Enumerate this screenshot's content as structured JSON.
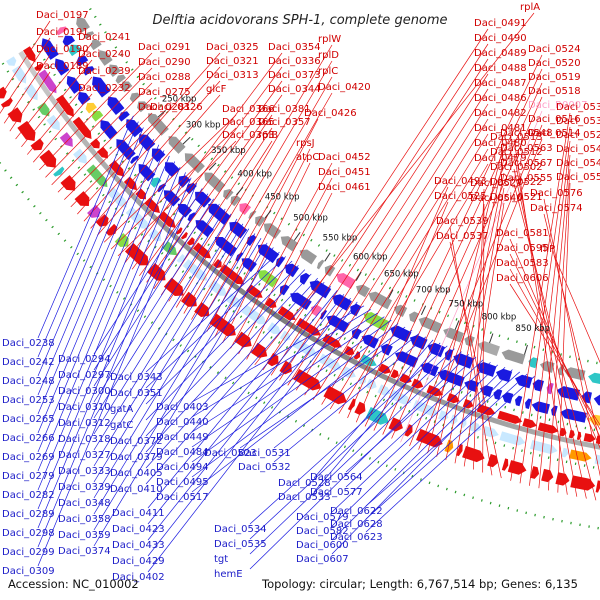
{
  "title": "Delftia acidovorans SPH-1, complete genome",
  "footer": {
    "accession": "Accession: NC_010002",
    "summary": "Topology: circular; Length: 6,767,514 bp; Genes: 6,135"
  },
  "ticks": [
    "250 kbp",
    "300 kbp",
    "350 kbp",
    "400 kbp",
    "450 kbp",
    "500 kbp",
    "550 kbp",
    "600 kbp",
    "650 kbp",
    "700 kbp",
    "750 kbp",
    "800 kbp",
    "850 kbp"
  ],
  "top_labels": [
    {
      "t": "Daci_0197",
      "c": "r"
    },
    {
      "t": "Daci_0191",
      "c": "r"
    },
    {
      "t": "Daci_0190",
      "c": "r"
    },
    {
      "t": "Daci_0189",
      "c": "r"
    },
    {
      "t": "Daci_0241",
      "c": "r"
    },
    {
      "t": "Daci_0240",
      "c": "r"
    },
    {
      "t": "Daci_0239",
      "c": "r"
    },
    {
      "t": "Daci_0232",
      "c": "r"
    },
    {
      "t": "Daci_0291",
      "c": "r"
    },
    {
      "t": "Daci_0290",
      "c": "r"
    },
    {
      "t": "Daci_0288",
      "c": "r"
    },
    {
      "t": "Daci_0275",
      "c": "r"
    },
    {
      "t": "Daci_0281",
      "c": "r"
    },
    {
      "t": "Daci_0326",
      "c": "r"
    },
    {
      "t": "Daci_0325",
      "c": "r"
    },
    {
      "t": "Daci_0321",
      "c": "r"
    },
    {
      "t": "Daci_0313",
      "c": "r"
    },
    {
      "t": "glcF",
      "c": "r"
    },
    {
      "t": "Daci_0366",
      "c": "r"
    },
    {
      "t": "Daci_0365",
      "c": "r"
    },
    {
      "t": "Daci_0363",
      "c": "r"
    },
    {
      "t": "Daci_0354",
      "c": "r"
    },
    {
      "t": "Daci_0336",
      "c": "r"
    },
    {
      "t": "Daci_0373",
      "c": "r"
    },
    {
      "t": "Daci_0344",
      "c": "r"
    },
    {
      "t": "Daci_0381",
      "c": "r"
    },
    {
      "t": "Daci_0357",
      "c": "r"
    },
    {
      "t": "rplB",
      "c": "r"
    },
    {
      "t": "rplW",
      "c": "r"
    },
    {
      "t": "rplD",
      "c": "r"
    },
    {
      "t": "rplC",
      "c": "r"
    },
    {
      "t": "Daci_0420",
      "c": "r"
    },
    {
      "t": "Daci_0426",
      "c": "r"
    },
    {
      "t": "rpsJ",
      "c": "r"
    },
    {
      "t": "atpC",
      "c": "r"
    },
    {
      "t": "Daci_0452",
      "c": "r"
    },
    {
      "t": "Daci_0451",
      "c": "r"
    },
    {
      "t": "Daci_0461",
      "c": "r"
    },
    {
      "t": "rplA",
      "c": "r"
    },
    {
      "t": "Daci_0491",
      "c": "r"
    },
    {
      "t": "Daci_0490",
      "c": "r"
    },
    {
      "t": "Daci_0489",
      "c": "r"
    },
    {
      "t": "Daci_0488",
      "c": "r"
    },
    {
      "t": "Daci_0487",
      "c": "r"
    },
    {
      "t": "Daci_0486",
      "c": "r"
    },
    {
      "t": "Daci_0482",
      "c": "r"
    },
    {
      "t": "Daci_0481",
      "c": "r"
    },
    {
      "t": "Daci_0480",
      "c": "r"
    },
    {
      "t": "Daci_0479",
      "c": "r"
    },
    {
      "t": "Daci_0493",
      "c": "r"
    },
    {
      "t": "Daci_0525",
      "c": "r"
    },
    {
      "t": "Daci_0524",
      "c": "r"
    },
    {
      "t": "Daci_0520",
      "c": "r"
    },
    {
      "t": "Daci_0519",
      "c": "r"
    },
    {
      "t": "Daci_0518",
      "c": "r"
    },
    {
      "t": "Daci_R0007",
      "c": "p"
    },
    {
      "t": "Daci_0516",
      "c": "r"
    },
    {
      "t": "Daci_0514",
      "c": "r"
    },
    {
      "t": "Daci_0513",
      "c": "r"
    },
    {
      "t": "Daci_0512",
      "c": "r"
    },
    {
      "t": "Daci_0502",
      "c": "r"
    },
    {
      "t": "Daci_0522",
      "c": "r"
    },
    {
      "t": "Daci_0521",
      "c": "r"
    },
    {
      "t": "Daci_0527",
      "c": "r"
    },
    {
      "t": "Daci_0540",
      "c": "r"
    },
    {
      "t": "Daci_0539",
      "c": "r"
    },
    {
      "t": "Daci_0537",
      "c": "r"
    },
    {
      "t": "Daci_0536",
      "c": "r"
    },
    {
      "t": "Daci_0530",
      "c": "r"
    },
    {
      "t": "Daci_0529",
      "c": "r"
    },
    {
      "t": "Daci_0544",
      "c": "r"
    },
    {
      "t": "Daci_0542",
      "c": "r"
    },
    {
      "t": "Daci_0550",
      "c": "r"
    },
    {
      "t": "Daci_0548",
      "c": "r"
    },
    {
      "t": "Daci_0563",
      "c": "r"
    },
    {
      "t": "Daci_0567",
      "c": "r"
    },
    {
      "t": "Daci_0555",
      "c": "r"
    },
    {
      "t": "Daci_0576",
      "c": "r"
    },
    {
      "t": "Daci_0574",
      "c": "r"
    },
    {
      "t": "Daci_0581",
      "c": "r"
    },
    {
      "t": "Daci_0595",
      "c": "r"
    },
    {
      "t": "Daci_0583",
      "c": "r"
    },
    {
      "t": "Daci_0606",
      "c": "r"
    },
    {
      "t": "fliP",
      "c": "r"
    }
  ],
  "bottom_labels": [
    {
      "t": "Daci_0238"
    },
    {
      "t": "Daci_0242"
    },
    {
      "t": "Daci_0248"
    },
    {
      "t": "Daci_0253"
    },
    {
      "t": "Daci_0265"
    },
    {
      "t": "Daci_0266"
    },
    {
      "t": "Daci_0269"
    },
    {
      "t": "Daci_0279"
    },
    {
      "t": "Daci_0282"
    },
    {
      "t": "Daci_0289"
    },
    {
      "t": "Daci_0298"
    },
    {
      "t": "Daci_0299"
    },
    {
      "t": "Daci_0309"
    },
    {
      "t": "Daci_0294"
    },
    {
      "t": "Daci_0297"
    },
    {
      "t": "Daci_0300"
    },
    {
      "t": "Daci_0310"
    },
    {
      "t": "Daci_0312"
    },
    {
      "t": "Daci_0318"
    },
    {
      "t": "Daci_0327"
    },
    {
      "t": "Daci_0333"
    },
    {
      "t": "Daci_0339"
    },
    {
      "t": "Daci_0348"
    },
    {
      "t": "Daci_0358"
    },
    {
      "t": "Daci_0359"
    },
    {
      "t": "Daci_0374"
    },
    {
      "t": "Daci_0343"
    },
    {
      "t": "Daci_0351"
    },
    {
      "t": "gatA"
    },
    {
      "t": "gatC"
    },
    {
      "t": "Daci_0372"
    },
    {
      "t": "Daci_0379"
    },
    {
      "t": "Daci_0405"
    },
    {
      "t": "Daci_0410"
    },
    {
      "t": "Daci_0411"
    },
    {
      "t": "Daci_0423"
    },
    {
      "t": "Daci_0433"
    },
    {
      "t": "Daci_0429"
    },
    {
      "t": "Daci_0402"
    },
    {
      "t": "Daci_0403"
    },
    {
      "t": "Daci_0440"
    },
    {
      "t": "Daci_0449"
    },
    {
      "t": "Daci_0484"
    },
    {
      "t": "Daci_0494"
    },
    {
      "t": "Daci_0495"
    },
    {
      "t": "Daci_0517"
    },
    {
      "t": "Daci_0523"
    },
    {
      "t": "Daci_0531"
    },
    {
      "t": "Daci_0532"
    },
    {
      "t": "Daci_0528"
    },
    {
      "t": "Daci_0533"
    },
    {
      "t": "Daci_0534"
    },
    {
      "t": "Daci_0535"
    },
    {
      "t": "tgt"
    },
    {
      "t": "hemE"
    },
    {
      "t": "Daci_0564"
    },
    {
      "t": "Daci_0577"
    },
    {
      "t": "Daci_0579"
    },
    {
      "t": "Daci_0582"
    },
    {
      "t": "Daci_0600"
    },
    {
      "t": "Daci_0607"
    },
    {
      "t": "Daci_0622"
    },
    {
      "t": "Daci_0628"
    },
    {
      "t": "Daci_0623"
    }
  ],
  "colors": {
    "forward": "#e81010",
    "reverse": "#1a1ae0",
    "backbone": "#8a8a8a",
    "dots": "#2a9a2a"
  }
}
